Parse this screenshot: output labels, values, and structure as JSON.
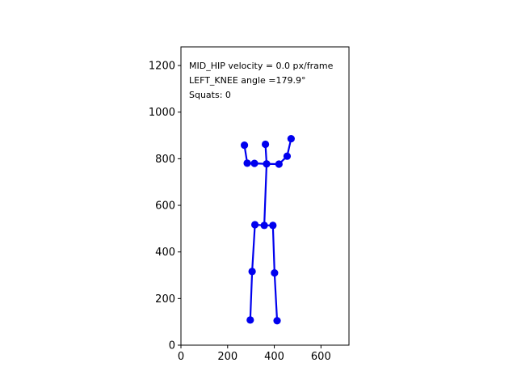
{
  "chart_data": {
    "type": "scatter",
    "annotations": [
      "MID_HIP velocity = 0.0 px/frame",
      "LEFT_KNEE angle =179.9°",
      "Squats: 0"
    ],
    "xlim": [
      0,
      720
    ],
    "ylim": [
      0,
      1280
    ],
    "xticks": [
      0,
      200,
      400,
      600
    ],
    "yticks": [
      0,
      200,
      400,
      600,
      800,
      1000,
      1200
    ],
    "grid": false,
    "marker_color": "#0000ee",
    "line_color": "#0000ee",
    "points": [
      {
        "x": 297,
        "y": 108
      },
      {
        "x": 305,
        "y": 316
      },
      {
        "x": 317,
        "y": 517
      },
      {
        "x": 357,
        "y": 514
      },
      {
        "x": 394,
        "y": 514
      },
      {
        "x": 401,
        "y": 310
      },
      {
        "x": 412,
        "y": 105
      },
      {
        "x": 284,
        "y": 781
      },
      {
        "x": 315,
        "y": 780
      },
      {
        "x": 367,
        "y": 778
      },
      {
        "x": 420,
        "y": 777
      },
      {
        "x": 272,
        "y": 858
      },
      {
        "x": 362,
        "y": 862
      },
      {
        "x": 455,
        "y": 811
      },
      {
        "x": 472,
        "y": 886
      }
    ],
    "segments": [
      [
        0,
        1
      ],
      [
        1,
        2
      ],
      [
        2,
        3
      ],
      [
        3,
        4
      ],
      [
        4,
        5
      ],
      [
        5,
        6
      ],
      [
        3,
        9
      ],
      [
        7,
        8
      ],
      [
        8,
        9
      ],
      [
        9,
        10
      ],
      [
        10,
        13
      ],
      [
        13,
        14
      ],
      [
        7,
        11
      ],
      [
        9,
        12
      ]
    ]
  }
}
